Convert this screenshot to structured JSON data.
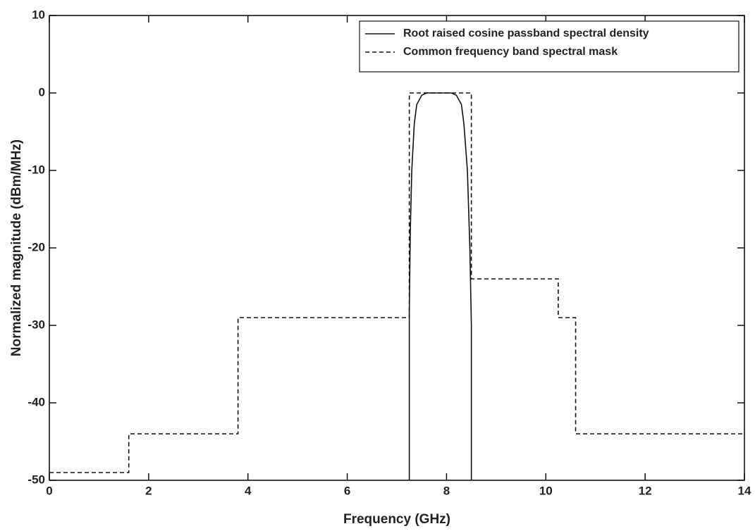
{
  "chart_data": {
    "type": "line",
    "x_label": "Frequency (GHz)",
    "y_label": "Normalized magnitude (dBm/MHz)",
    "xlim": [
      0,
      14
    ],
    "ylim": [
      -50,
      10
    ],
    "xticks": [
      0,
      2,
      4,
      6,
      8,
      10,
      12,
      14
    ],
    "yticks": [
      -50,
      -40,
      -30,
      -20,
      -10,
      0,
      10
    ],
    "grid": false,
    "legend": "upper right",
    "series": [
      {
        "name": "Root raised cosine passband spectral density",
        "color": "#111111",
        "linestyle": "solid",
        "x": [
          7.25,
          7.25,
          7.27,
          7.3,
          7.35,
          7.4,
          7.5,
          7.6,
          8.1,
          8.2,
          8.3,
          8.35,
          8.42,
          8.47,
          8.5,
          8.5
        ],
        "values": [
          -50,
          -28,
          -18,
          -10,
          -4,
          -1.5,
          -0.3,
          0,
          0,
          -0.3,
          -1.5,
          -4,
          -10,
          -20,
          -30,
          -50
        ]
      },
      {
        "name": "Common frequency band spectral mask",
        "color": "#111111",
        "linestyle": "dashed",
        "x": [
          0,
          1.6,
          1.6,
          3.8,
          3.8,
          7.25,
          7.25,
          8.5,
          8.5,
          10.25,
          10.25,
          10.6,
          10.6,
          14
        ],
        "values": [
          -49,
          -49,
          -44,
          -44,
          -29,
          -29,
          0,
          0,
          -24,
          -24,
          -29,
          -29,
          -44,
          -44
        ]
      }
    ]
  }
}
